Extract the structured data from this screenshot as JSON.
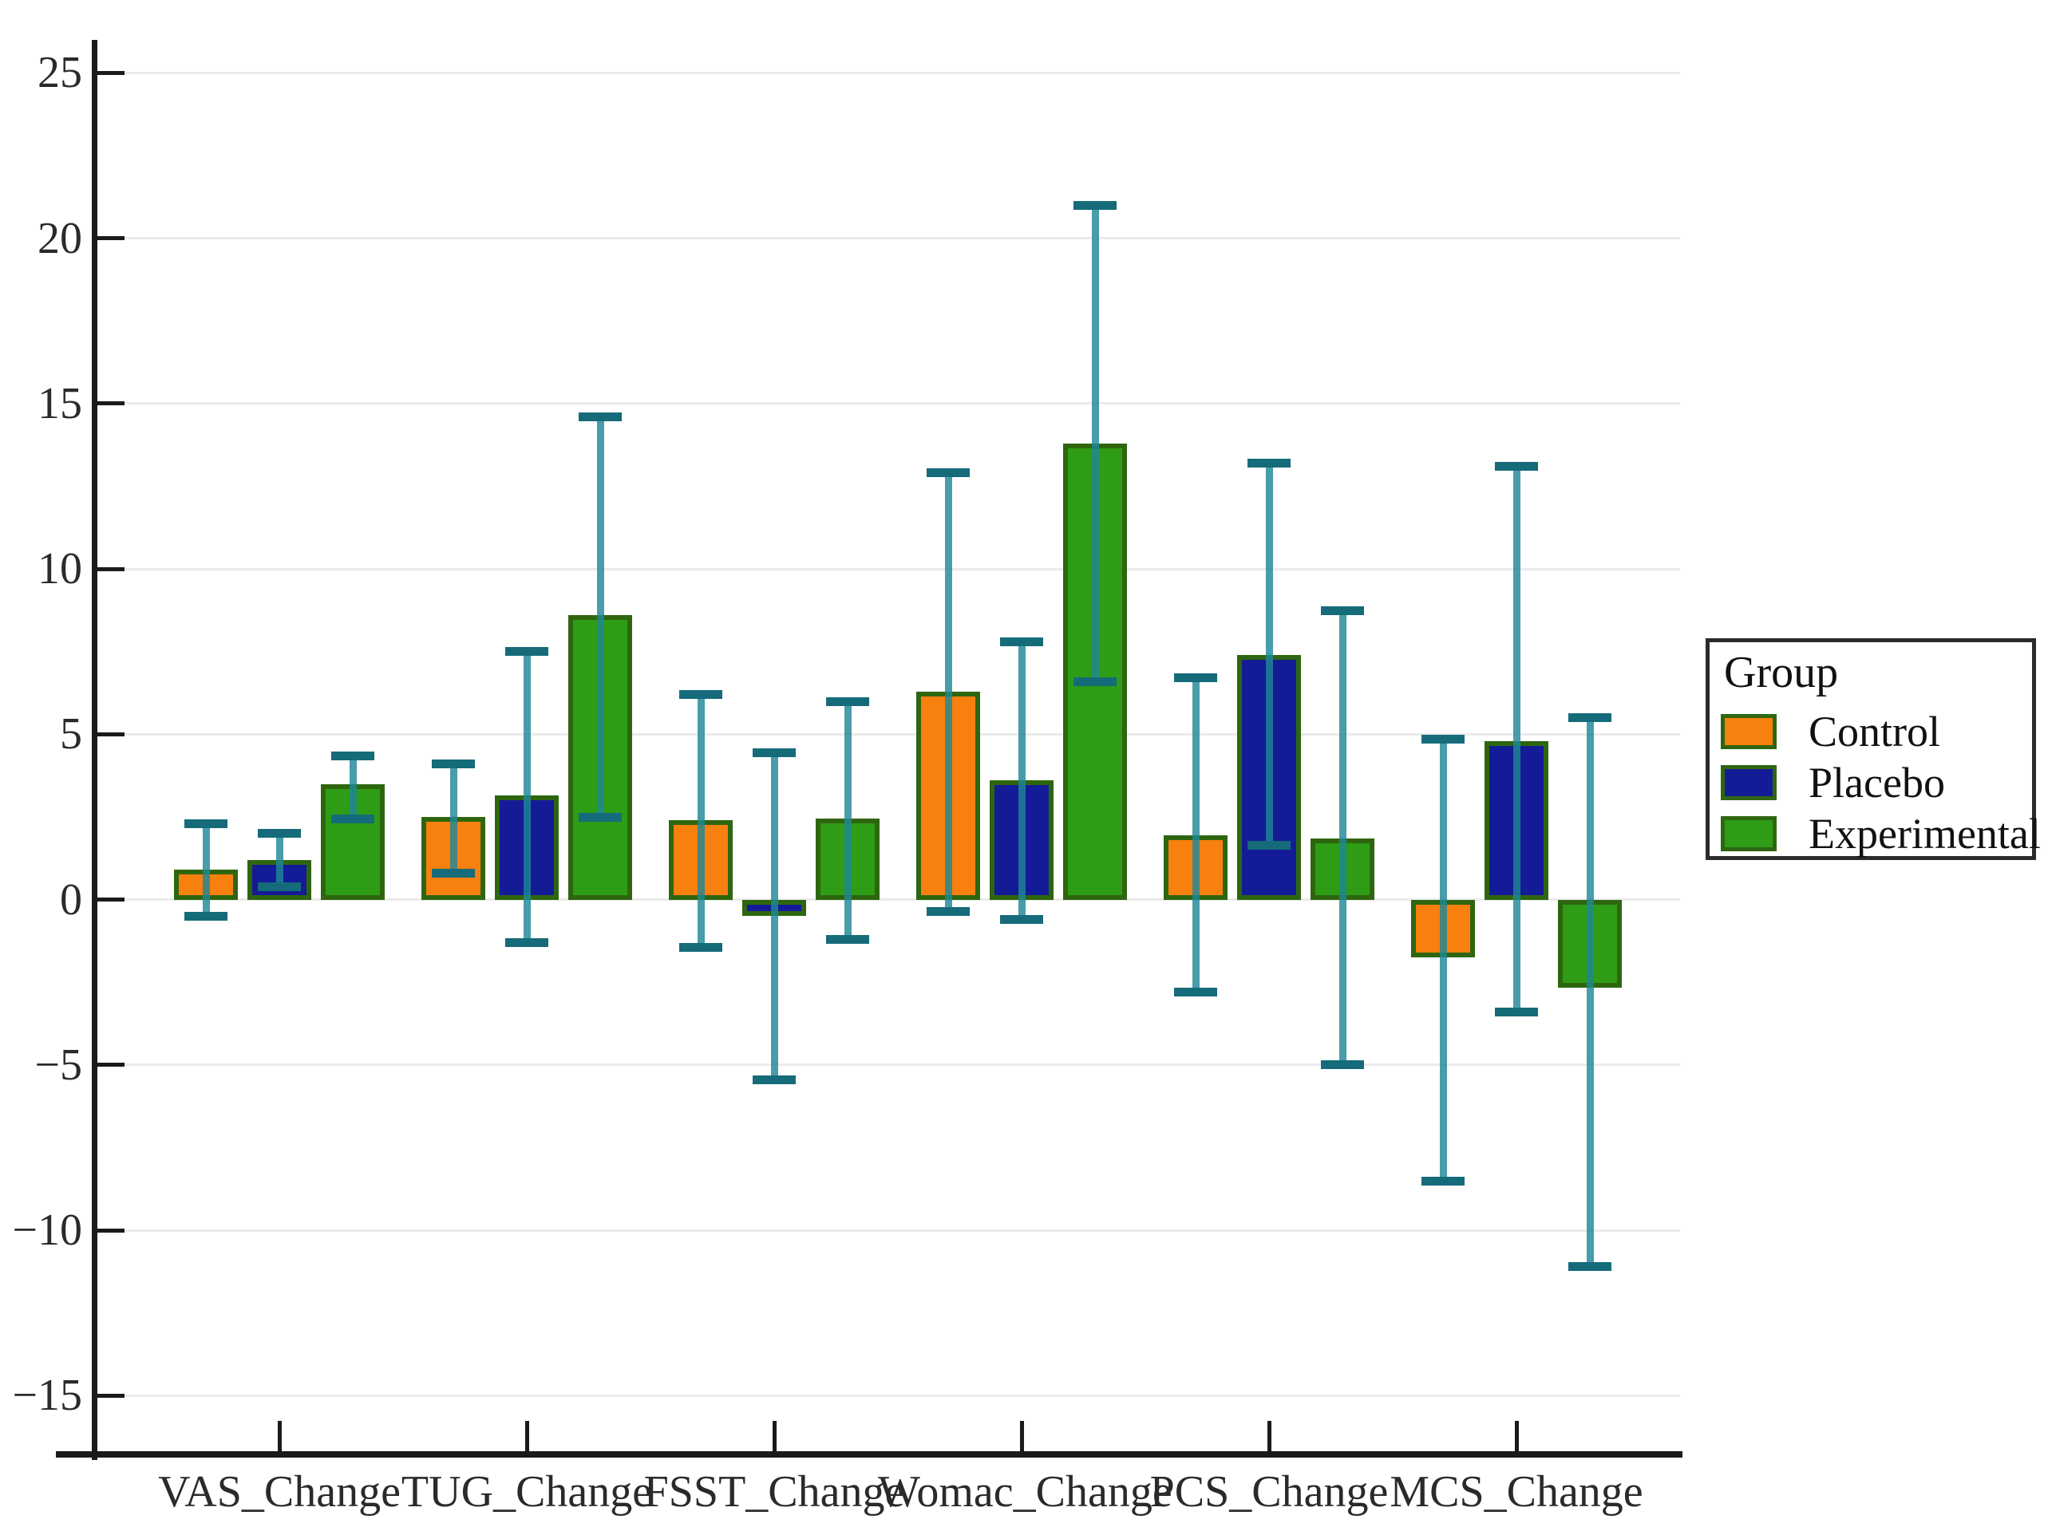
{
  "chart_data": {
    "type": "bar",
    "title": "",
    "legend_title": "Group",
    "legend_position": "right",
    "grid": true,
    "categories": [
      "VAS_Change",
      "TUG_Change",
      "FSST_Change",
      "Womac_Change",
      "PCS_Change",
      "MCS_Change"
    ],
    "xlabel": "",
    "ylabel": "",
    "ylim": [
      -16.75,
      26
    ],
    "yticks": [
      -15,
      -10,
      -5,
      0,
      5,
      10,
      15,
      20,
      25
    ],
    "colors": {
      "grid": "#ebebeb",
      "axis": "#1a1a1a",
      "bar_edge": "#2e6610",
      "error_line": "#1e8796",
      "error_cap": "#156b79",
      "legend_border": "#2b2b2b",
      "text": "#2a2a2a"
    },
    "series": [
      {
        "name": "Control",
        "color": "#f8800f",
        "values": [
          0.9,
          2.5,
          2.4,
          6.3,
          1.95,
          -1.75
        ],
        "err_low": [
          -0.5,
          0.8,
          -1.45,
          -0.35,
          -2.8,
          -8.5
        ],
        "err_high": [
          2.3,
          4.1,
          6.2,
          12.9,
          6.7,
          4.85
        ]
      },
      {
        "name": "Placebo",
        "color": "#141b96",
        "values": [
          1.2,
          3.15,
          -0.5,
          3.6,
          7.4,
          4.8
        ],
        "err_low": [
          0.4,
          -1.3,
          -5.45,
          -0.6,
          1.65,
          -3.4
        ],
        "err_high": [
          2.0,
          7.5,
          4.45,
          7.8,
          13.2,
          13.1
        ]
      },
      {
        "name": "Experimental",
        "color": "#2f9c15",
        "values": [
          3.5,
          8.6,
          2.45,
          13.8,
          1.85,
          -2.65
        ],
        "err_low": [
          2.45,
          2.5,
          -1.2,
          6.6,
          -5.0,
          -11.1
        ],
        "err_high": [
          4.35,
          14.6,
          6.0,
          21.0,
          8.75,
          5.5
        ]
      }
    ]
  }
}
